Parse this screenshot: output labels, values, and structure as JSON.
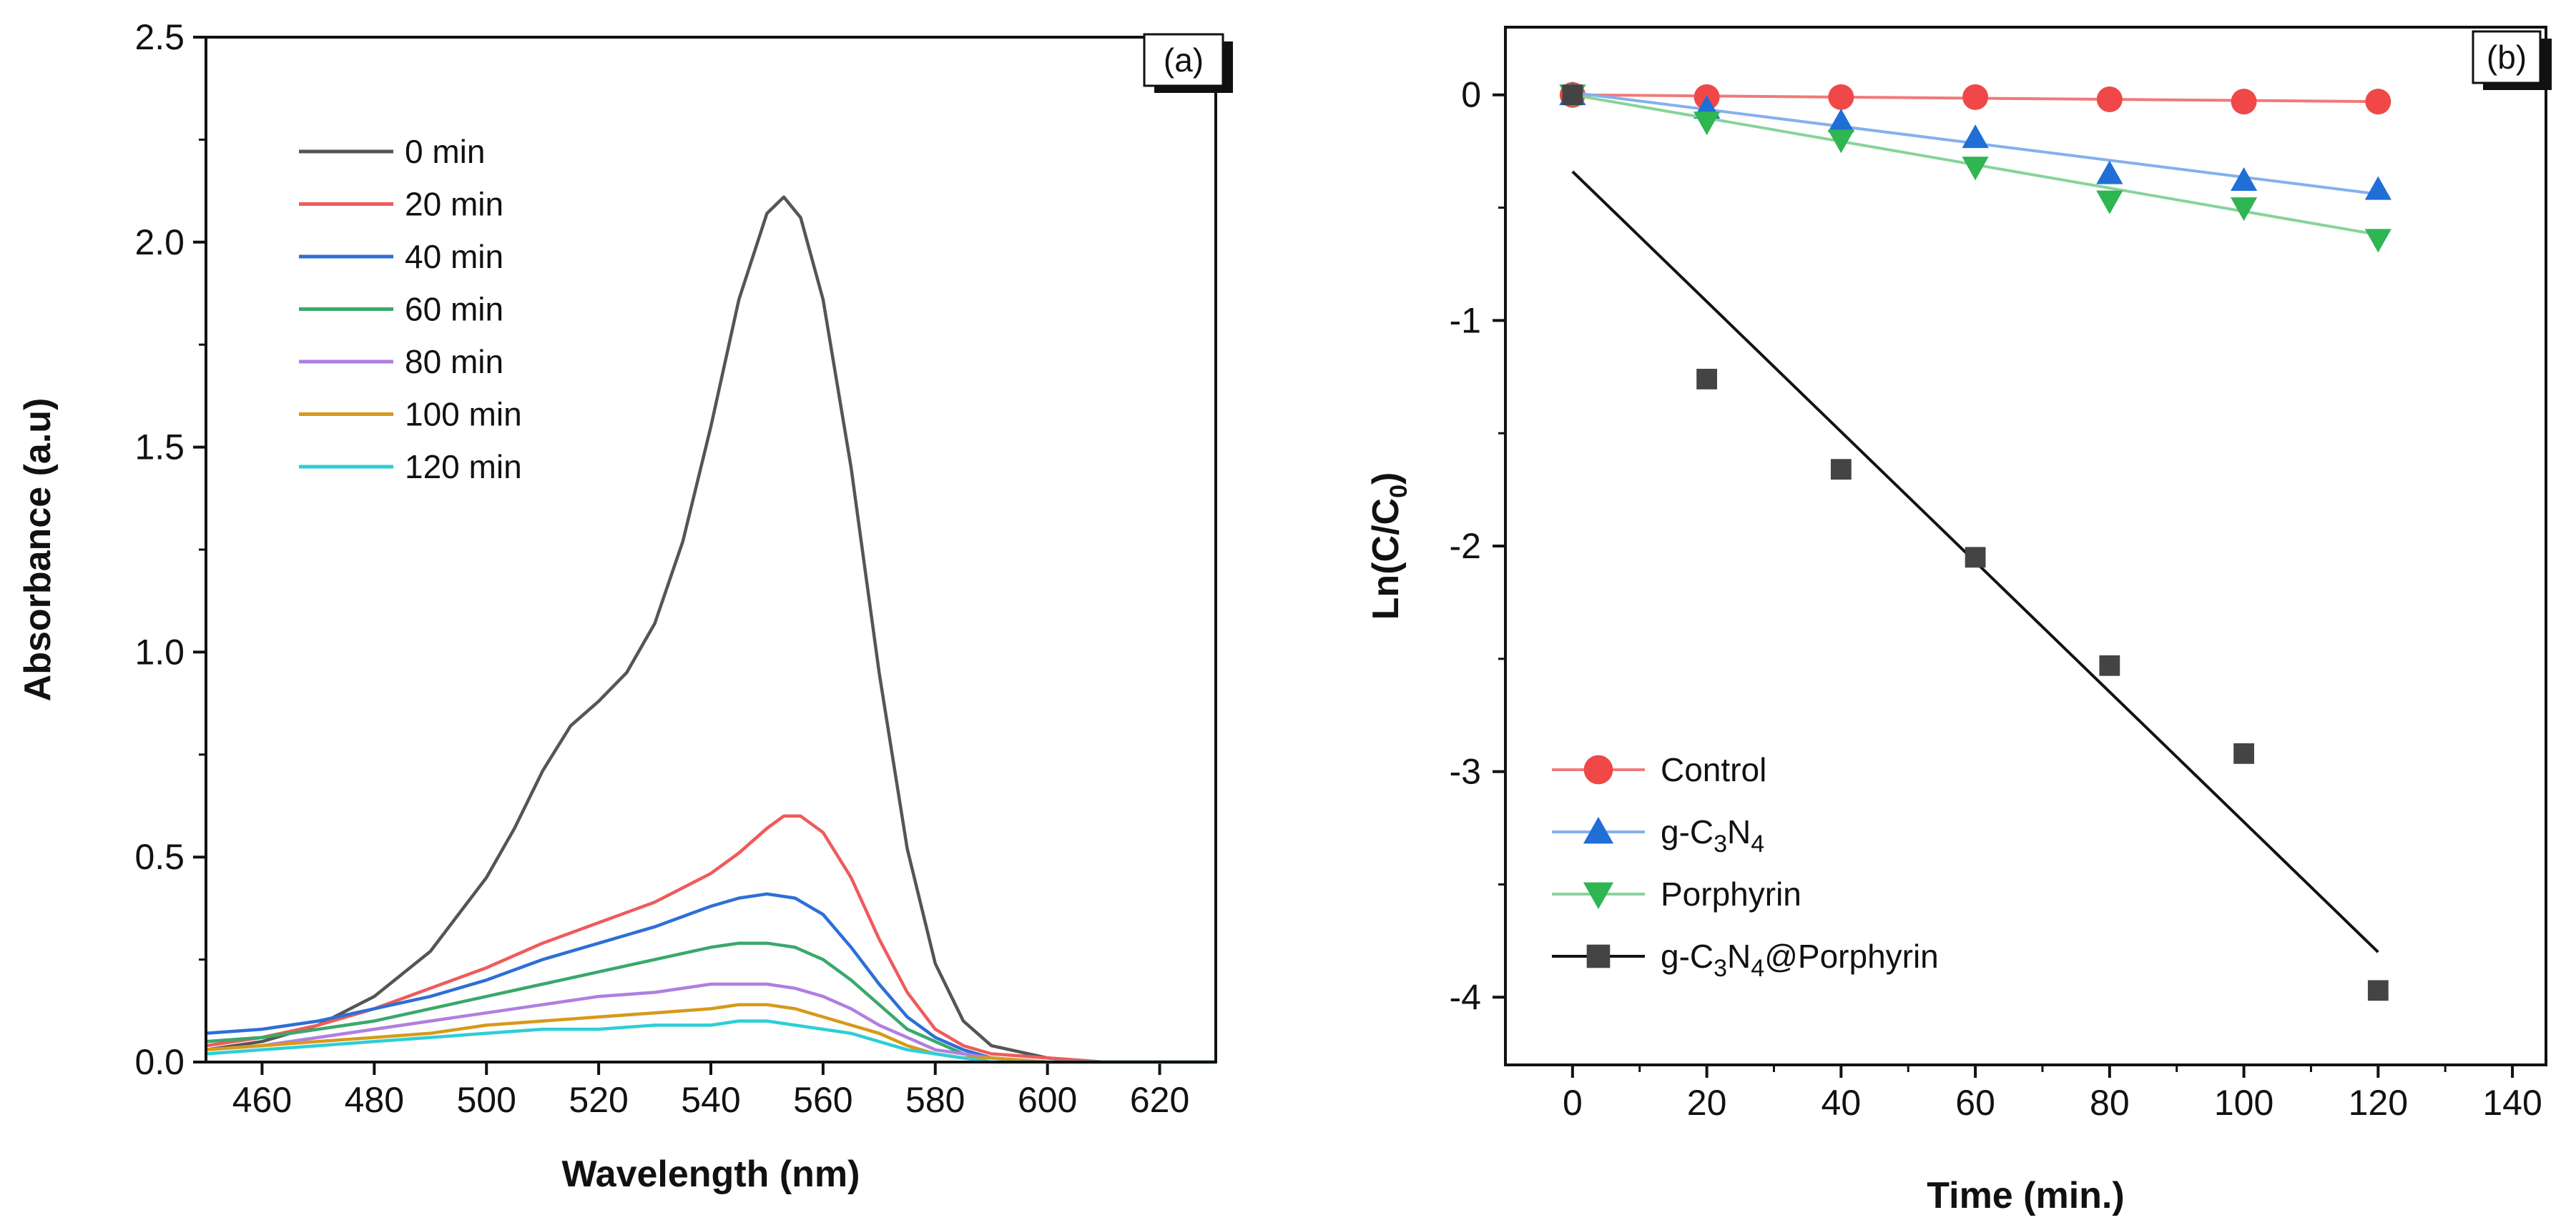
{
  "chart_data": [
    {
      "panel": "a",
      "type": "line",
      "panel_label": "(a)",
      "xlabel": "Wavelength (nm)",
      "ylabel": "Absorbance (a.u)",
      "xlim": [
        450,
        630
      ],
      "ylim": [
        0,
        2.5
      ],
      "xticks": [
        460,
        480,
        500,
        520,
        540,
        560,
        580,
        600,
        620
      ],
      "yticks": [
        0.0,
        0.5,
        1.0,
        1.5,
        2.0,
        2.5
      ],
      "ytick_labels": [
        "0.0",
        "0.5",
        "1.0",
        "1.5",
        "2.0",
        "2.5"
      ],
      "legend_position": "top-left",
      "series": [
        {
          "name": "0 min",
          "color": "#555555",
          "x": [
            450,
            460,
            470,
            480,
            490,
            500,
            505,
            510,
            515,
            520,
            525,
            530,
            535,
            540,
            545,
            550,
            553,
            556,
            560,
            565,
            570,
            575,
            580,
            585,
            590,
            600,
            610,
            620,
            630
          ],
          "y": [
            0.03,
            0.05,
            0.09,
            0.16,
            0.27,
            0.45,
            0.57,
            0.71,
            0.82,
            0.88,
            0.95,
            1.07,
            1.27,
            1.55,
            1.86,
            2.07,
            2.11,
            2.06,
            1.86,
            1.45,
            0.95,
            0.52,
            0.24,
            0.1,
            0.04,
            0.01,
            0.0,
            0.0,
            0.0
          ]
        },
        {
          "name": "20 min",
          "color": "#ef5b5b",
          "x": [
            450,
            460,
            470,
            480,
            490,
            500,
            510,
            520,
            530,
            540,
            545,
            550,
            553,
            556,
            560,
            565,
            570,
            575,
            580,
            585,
            590,
            600,
            610,
            620,
            630
          ],
          "y": [
            0.04,
            0.06,
            0.09,
            0.13,
            0.18,
            0.23,
            0.29,
            0.34,
            0.39,
            0.46,
            0.51,
            0.57,
            0.6,
            0.6,
            0.56,
            0.45,
            0.3,
            0.17,
            0.08,
            0.04,
            0.02,
            0.01,
            0.0,
            0.0,
            0.0
          ]
        },
        {
          "name": "40 min",
          "color": "#2d6fd6",
          "x": [
            450,
            460,
            470,
            480,
            490,
            500,
            510,
            520,
            530,
            540,
            545,
            550,
            555,
            560,
            565,
            570,
            575,
            580,
            585,
            590,
            600,
            610,
            620,
            630
          ],
          "y": [
            0.07,
            0.08,
            0.1,
            0.13,
            0.16,
            0.2,
            0.25,
            0.29,
            0.33,
            0.38,
            0.4,
            0.41,
            0.4,
            0.36,
            0.28,
            0.19,
            0.11,
            0.06,
            0.03,
            0.01,
            0.0,
            0.0,
            0.0,
            0.0
          ]
        },
        {
          "name": "60 min",
          "color": "#3aa86b",
          "x": [
            450,
            460,
            470,
            480,
            490,
            500,
            510,
            520,
            530,
            540,
            545,
            550,
            555,
            560,
            565,
            570,
            575,
            580,
            585,
            590,
            600,
            610,
            620,
            630
          ],
          "y": [
            0.05,
            0.06,
            0.08,
            0.1,
            0.13,
            0.16,
            0.19,
            0.22,
            0.25,
            0.28,
            0.29,
            0.29,
            0.28,
            0.25,
            0.2,
            0.14,
            0.08,
            0.05,
            0.02,
            0.01,
            0.0,
            0.0,
            0.0,
            0.0
          ]
        },
        {
          "name": "80 min",
          "color": "#b07fe0",
          "x": [
            450,
            460,
            470,
            480,
            490,
            500,
            510,
            520,
            530,
            540,
            545,
            550,
            555,
            560,
            565,
            570,
            575,
            580,
            585,
            590,
            600,
            610,
            620,
            630
          ],
          "y": [
            0.03,
            0.04,
            0.06,
            0.08,
            0.1,
            0.12,
            0.14,
            0.16,
            0.17,
            0.19,
            0.19,
            0.19,
            0.18,
            0.16,
            0.13,
            0.09,
            0.06,
            0.03,
            0.02,
            0.01,
            0.0,
            0.0,
            0.0,
            0.0
          ]
        },
        {
          "name": "100 min",
          "color": "#d69a1a",
          "x": [
            450,
            460,
            470,
            480,
            490,
            500,
            510,
            520,
            530,
            540,
            545,
            550,
            555,
            560,
            565,
            570,
            575,
            580,
            585,
            590,
            600,
            610,
            620,
            630
          ],
          "y": [
            0.03,
            0.04,
            0.05,
            0.06,
            0.07,
            0.09,
            0.1,
            0.11,
            0.12,
            0.13,
            0.14,
            0.14,
            0.13,
            0.11,
            0.09,
            0.07,
            0.04,
            0.02,
            0.01,
            0.01,
            0.0,
            0.0,
            0.0,
            0.0
          ]
        },
        {
          "name": "120 min",
          "color": "#2ccfd6",
          "x": [
            450,
            460,
            470,
            480,
            490,
            500,
            510,
            520,
            530,
            540,
            545,
            550,
            555,
            560,
            565,
            570,
            575,
            580,
            585,
            590,
            600,
            610,
            620,
            630
          ],
          "y": [
            0.02,
            0.03,
            0.04,
            0.05,
            0.06,
            0.07,
            0.08,
            0.08,
            0.09,
            0.09,
            0.1,
            0.1,
            0.09,
            0.08,
            0.07,
            0.05,
            0.03,
            0.02,
            0.01,
            0.0,
            0.0,
            0.0,
            0.0,
            0.0
          ]
        }
      ]
    },
    {
      "panel": "b",
      "type": "scatter",
      "panel_label": "(b)",
      "xlabel": "Time (min.)",
      "ylabel_main": "Ln(C/C",
      "ylabel_sub": "0",
      "ylabel_end": ")",
      "xlim": [
        -10,
        145
      ],
      "ylim": [
        -4.3,
        0.3
      ],
      "xticks": [
        0,
        20,
        40,
        60,
        80,
        100,
        120,
        140
      ],
      "yticks": [
        0,
        -1,
        -2,
        -3,
        -4
      ],
      "ytick_labels": [
        "0",
        "-1",
        "-2",
        "-3",
        "-4"
      ],
      "legend_position": "bottom-left",
      "series": [
        {
          "name": "Control",
          "marker": "circle",
          "color": "#f04848",
          "line_color": "#f07a7a",
          "x": [
            0,
            20,
            40,
            60,
            80,
            100,
            120
          ],
          "y": [
            0,
            -0.01,
            -0.01,
            -0.01,
            -0.02,
            -0.03,
            -0.03
          ],
          "fit": {
            "x": [
              0,
              120
            ],
            "y": [
              0,
              -0.03
            ]
          }
        },
        {
          "name": "g-C3N4",
          "marker": "triangle-up",
          "color": "#1f6fd6",
          "line_color": "#84b0ee",
          "legend_parts": [
            [
              "g-C",
              ""
            ],
            [
              "3",
              "sub"
            ],
            [
              "N",
              ""
            ],
            [
              "4",
              "sub"
            ]
          ],
          "x": [
            0,
            20,
            40,
            60,
            80,
            100,
            120
          ],
          "y": [
            0,
            -0.06,
            -0.12,
            -0.19,
            -0.35,
            -0.38,
            -0.42
          ],
          "fit": {
            "x": [
              0,
              120
            ],
            "y": [
              0.01,
              -0.44
            ]
          }
        },
        {
          "name": "Porphyrin",
          "marker": "triangle-down",
          "color": "#2fb552",
          "line_color": "#86d49a",
          "x": [
            0,
            20,
            40,
            60,
            80,
            100,
            120
          ],
          "y": [
            0,
            -0.12,
            -0.2,
            -0.32,
            -0.47,
            -0.5,
            -0.64
          ],
          "fit": {
            "x": [
              0,
              120
            ],
            "y": [
              0,
              -0.62
            ]
          }
        },
        {
          "name": "g-C3N4@Porphyrin",
          "marker": "square",
          "color": "#444444",
          "line_color": "#111111",
          "legend_parts": [
            [
              "g-C",
              ""
            ],
            [
              "3",
              "sub"
            ],
            [
              "N",
              ""
            ],
            [
              "4",
              "sub"
            ],
            [
              "@Porphyrin",
              ""
            ]
          ],
          "x": [
            0,
            20,
            40,
            60,
            80,
            100,
            120
          ],
          "y": [
            0,
            -1.26,
            -1.66,
            -2.05,
            -2.53,
            -2.92,
            -3.97
          ],
          "fit": {
            "x": [
              0,
              120
            ],
            "y": [
              -0.34,
              -3.8
            ]
          }
        }
      ]
    }
  ]
}
